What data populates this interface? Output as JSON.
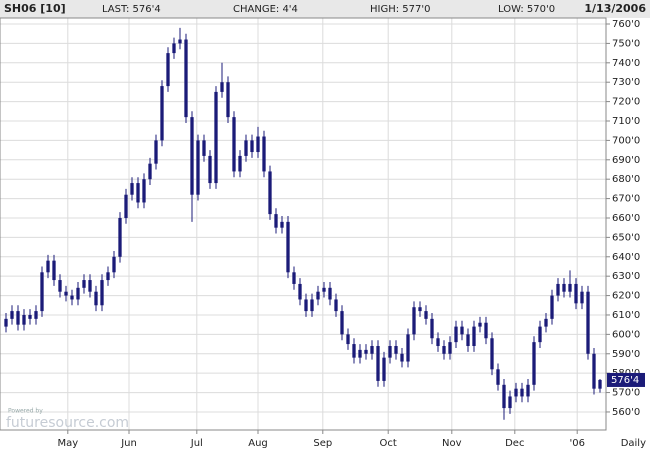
{
  "chart_data": {
    "type": "candlestick",
    "header": {
      "symbol": "SH06 [10]",
      "last": "LAST: 576'4",
      "change": "CHANGE: 4'4",
      "high": "HIGH: 577'0",
      "low": "LOW: 570'0",
      "date": "1/13/2006"
    },
    "period": "Daily",
    "watermark": {
      "small": "Powered by",
      "brand": "futuresource.com"
    },
    "color": "#1b1b78",
    "grid": true,
    "last_price": {
      "value": 576.5,
      "label": "576'4"
    },
    "xlim": [
      -1,
      100
    ],
    "xticks": [
      {
        "value": 10.3,
        "label": "May"
      },
      {
        "value": 20.5,
        "label": "Jun"
      },
      {
        "value": 31.8,
        "label": "Jul"
      },
      {
        "value": 42,
        "label": "Aug"
      },
      {
        "value": 52.8,
        "label": "Sep"
      },
      {
        "value": 63.7,
        "label": "Oct"
      },
      {
        "value": 74.3,
        "label": "Nov"
      },
      {
        "value": 84.8,
        "label": "Dec"
      },
      {
        "value": 95.2,
        "label": "'06"
      }
    ],
    "ylim": [
      550.7,
      763.1
    ],
    "yticks": [
      {
        "value": 560,
        "label": "560'0"
      },
      {
        "value": 570,
        "label": "570'0"
      },
      {
        "value": 580,
        "label": "580'0"
      },
      {
        "value": 590,
        "label": "590'0"
      },
      {
        "value": 600,
        "label": "600'0"
      },
      {
        "value": 610,
        "label": "610'0"
      },
      {
        "value": 620,
        "label": "620'0"
      },
      {
        "value": 630,
        "label": "630'0"
      },
      {
        "value": 640,
        "label": "640'0"
      },
      {
        "value": 650,
        "label": "650'0"
      },
      {
        "value": 660,
        "label": "660'0"
      },
      {
        "value": 670,
        "label": "670'0"
      },
      {
        "value": 680,
        "label": "680'0"
      },
      {
        "value": 690,
        "label": "690'0"
      },
      {
        "value": 700,
        "label": "700'0"
      },
      {
        "value": 710,
        "label": "710'0"
      },
      {
        "value": 720,
        "label": "720'0"
      },
      {
        "value": 730,
        "label": "730'0"
      },
      {
        "value": 740,
        "label": "740'0"
      },
      {
        "value": 750,
        "label": "750'0"
      },
      {
        "value": 760,
        "label": "760'0"
      }
    ],
    "open": [
      604,
      608,
      612,
      605,
      610,
      608,
      612,
      632,
      638,
      628,
      622,
      620,
      618,
      624,
      628,
      622,
      615,
      628,
      632,
      640,
      660,
      672,
      678,
      668,
      680,
      688,
      700,
      728,
      745,
      750,
      752,
      712,
      672,
      700,
      692,
      678,
      725,
      730,
      712,
      684,
      692,
      700,
      694,
      702,
      684,
      662,
      655,
      658,
      632,
      626,
      618,
      612,
      618,
      622,
      624,
      618,
      612,
      600,
      595,
      588,
      592,
      590,
      594,
      576,
      588,
      594,
      590,
      586,
      600,
      614,
      612,
      608,
      598,
      594,
      590,
      596,
      604,
      600,
      594,
      604,
      606,
      598,
      582,
      574,
      562,
      568,
      572,
      568,
      574,
      596,
      604,
      608,
      620,
      626,
      622,
      626,
      616,
      622,
      590,
      572
    ],
    "high": [
      611,
      615,
      615,
      613,
      613,
      615,
      635,
      641,
      641,
      631,
      625,
      623,
      627,
      631,
      631,
      625,
      631,
      635,
      643,
      663,
      675,
      681,
      681,
      683,
      691,
      703,
      731,
      748,
      753,
      758,
      755,
      715,
      703,
      703,
      695,
      728,
      740,
      733,
      715,
      695,
      703,
      703,
      707,
      705,
      687,
      665,
      661,
      661,
      635,
      629,
      621,
      621,
      625,
      627,
      627,
      621,
      615,
      603,
      598,
      595,
      595,
      597,
      597,
      591,
      597,
      597,
      593,
      603,
      617,
      617,
      615,
      611,
      601,
      597,
      599,
      607,
      607,
      603,
      607,
      609,
      609,
      601,
      585,
      577,
      571,
      575,
      575,
      577,
      599,
      607,
      611,
      623,
      629,
      629,
      633,
      629,
      625,
      625,
      593,
      577
    ],
    "low": [
      601,
      605,
      602,
      602,
      605,
      605,
      609,
      629,
      625,
      619,
      617,
      615,
      615,
      621,
      619,
      612,
      612,
      625,
      629,
      637,
      657,
      669,
      665,
      665,
      677,
      685,
      697,
      725,
      742,
      747,
      709,
      658,
      669,
      689,
      675,
      675,
      722,
      709,
      681,
      681,
      689,
      691,
      691,
      681,
      659,
      652,
      652,
      629,
      623,
      615,
      609,
      609,
      615,
      619,
      615,
      609,
      597,
      592,
      585,
      585,
      587,
      587,
      573,
      573,
      585,
      587,
      583,
      583,
      597,
      609,
      605,
      595,
      591,
      587,
      587,
      593,
      597,
      591,
      591,
      601,
      595,
      579,
      571,
      556,
      559,
      565,
      565,
      565,
      571,
      593,
      601,
      605,
      617,
      619,
      619,
      613,
      613,
      587,
      569,
      570
    ],
    "close": [
      608,
      612,
      605,
      610,
      608,
      612,
      632,
      638,
      628,
      622,
      620,
      618,
      624,
      628,
      622,
      615,
      628,
      632,
      640,
      660,
      672,
      678,
      668,
      680,
      688,
      700,
      728,
      745,
      750,
      752,
      712,
      672,
      700,
      692,
      678,
      725,
      730,
      712,
      684,
      692,
      700,
      694,
      702,
      684,
      662,
      655,
      658,
      632,
      626,
      618,
      612,
      618,
      622,
      624,
      618,
      612,
      600,
      595,
      588,
      592,
      590,
      594,
      576,
      588,
      594,
      590,
      586,
      600,
      614,
      612,
      608,
      598,
      594,
      590,
      596,
      604,
      600,
      594,
      604,
      606,
      598,
      582,
      574,
      562,
      568,
      572,
      568,
      574,
      596,
      604,
      608,
      620,
      626,
      622,
      626,
      616,
      622,
      590,
      572,
      576.5
    ]
  }
}
